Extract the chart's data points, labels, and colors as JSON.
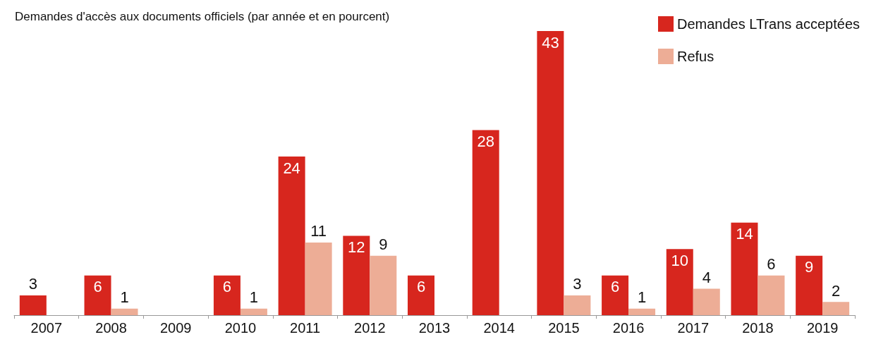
{
  "chart_data": {
    "type": "bar",
    "title": "Demandes d'accès aux documents officiels (par année et en pourcent)",
    "categories": [
      "2007",
      "2008",
      "2009",
      "2010",
      "2011",
      "2012",
      "2013",
      "2014",
      "2015",
      "2016",
      "2017",
      "2018",
      "2019"
    ],
    "series": [
      {
        "name": "Demandes LTrans acceptées",
        "color": "#d7261e",
        "values": [
          3,
          6,
          null,
          6,
          24,
          12,
          6,
          28,
          43,
          6,
          10,
          14,
          9
        ]
      },
      {
        "name": "Refus",
        "color": "#edad96",
        "values": [
          null,
          1,
          null,
          1,
          11,
          9,
          null,
          null,
          3,
          1,
          4,
          6,
          2
        ]
      }
    ],
    "ylim": [
      0,
      43
    ],
    "data_labels": true,
    "grid": false,
    "legend": "top right"
  }
}
